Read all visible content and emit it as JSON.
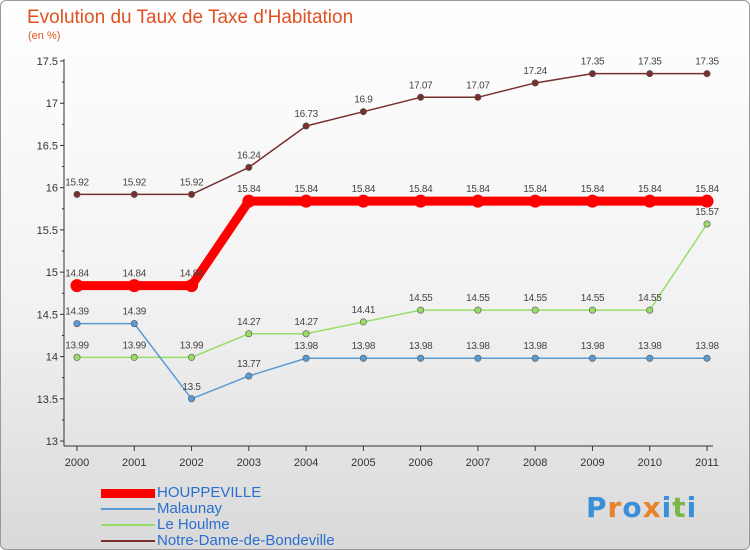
{
  "chart_data": {
    "type": "line",
    "title": "Evolution du Taux de Taxe d'Habitation",
    "unit_label": "(en %)",
    "x": [
      "2000",
      "2001",
      "2002",
      "2003",
      "2004",
      "2005",
      "2006",
      "2007",
      "2008",
      "2009",
      "2010",
      "2011"
    ],
    "ylim": [
      13,
      17.5
    ],
    "yticks": [
      13,
      13.5,
      14,
      14.5,
      15,
      15.5,
      16,
      16.5,
      17,
      17.5
    ],
    "ytick_labels": [
      "13",
      "13.5",
      "14",
      "14.5",
      "15",
      "15.5",
      "16",
      "16.5",
      "17",
      "17.5"
    ],
    "series": [
      {
        "name": "HOUPPEVILLE",
        "color": "#ff0000",
        "values": [
          14.84,
          14.84,
          14.84,
          15.84,
          15.84,
          15.84,
          15.84,
          15.84,
          15.84,
          15.84,
          15.84,
          15.84
        ],
        "labels": [
          "14.84",
          "14.84",
          "14.84",
          "15.84",
          "15.84",
          "15.84",
          "15.84",
          "15.84",
          "15.84",
          "15.84",
          "15.84",
          "15.84"
        ]
      },
      {
        "name": "Malaunay",
        "color": "#5b9bd5",
        "values": [
          14.39,
          14.39,
          13.5,
          13.77,
          13.98,
          13.98,
          13.98,
          13.98,
          13.98,
          13.98,
          13.98,
          13.98
        ],
        "labels": [
          "14.39",
          "14.39",
          "13.5",
          "13.77",
          "13.98",
          "13.98",
          "13.98",
          "13.98",
          "13.98",
          "13.98",
          "13.98",
          "13.98"
        ]
      },
      {
        "name": "Le Houlme",
        "color": "#99dd66",
        "values": [
          13.99,
          13.99,
          13.99,
          14.27,
          14.27,
          14.41,
          14.55,
          14.55,
          14.55,
          14.55,
          14.55,
          15.57
        ],
        "labels": [
          "13.99",
          "13.99",
          "13.99",
          "14.27",
          "14.27",
          "14.41",
          "14.55",
          "14.55",
          "14.55",
          "14.55",
          "14.55",
          "15.57"
        ]
      },
      {
        "name": "Notre-Dame-de-Bondeville",
        "color": "#7a2f2f",
        "values": [
          15.92,
          15.92,
          15.92,
          16.24,
          16.73,
          16.9,
          17.07,
          17.07,
          17.24,
          17.35,
          17.35,
          17.35
        ],
        "labels": [
          "15.92",
          "15.92",
          "15.92",
          "16.24",
          "16.73",
          "16.9",
          "17.07",
          "17.07",
          "17.24",
          "17.35",
          "17.35",
          "17.35"
        ]
      }
    ],
    "legend_position": "bottom-left",
    "grid": false
  },
  "branding": {
    "logo_text": [
      "P",
      "r",
      "o",
      "x",
      "i",
      "t",
      "i"
    ],
    "logo_colors": [
      "#3a8fd8",
      "#e8832a",
      "#3a8fd8",
      "#e8832a",
      "#3a8fd8",
      "#7ab648",
      "#3a8fd8"
    ]
  }
}
